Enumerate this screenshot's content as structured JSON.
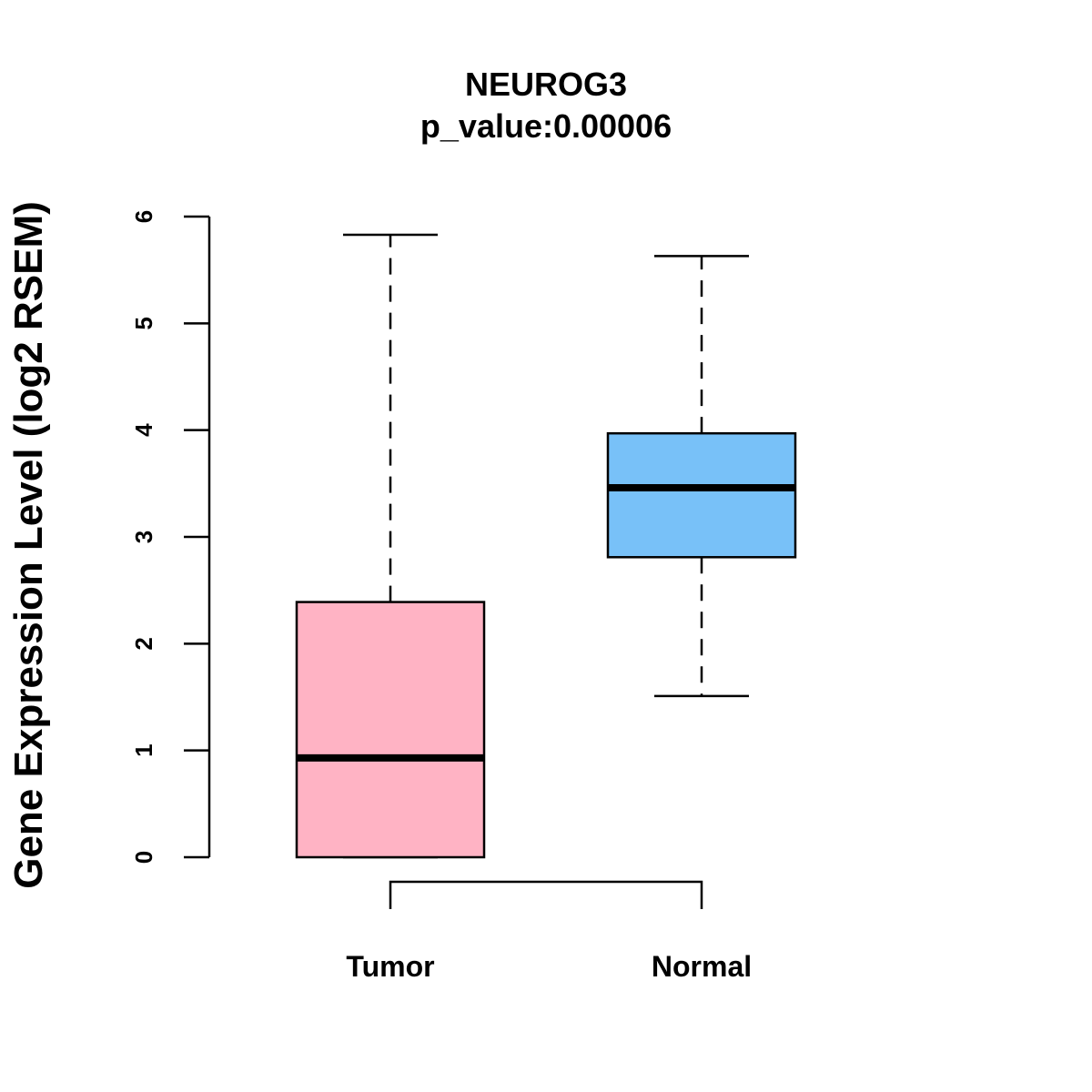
{
  "chart_data": {
    "type": "boxplot",
    "title": "NEUROG3",
    "subtitle": "p_value:0.00006",
    "ylabel": "Gene Expression Level (log2 RSEM)",
    "xlabel": "",
    "ylim": [
      0,
      6
    ],
    "yticks": [
      "0",
      "1",
      "2",
      "3",
      "4",
      "5",
      "6"
    ],
    "grid": false,
    "categories": [
      "Tumor",
      "Normal"
    ],
    "boxes": [
      {
        "category": "Tumor",
        "whisker_low": 0,
        "q1": 0,
        "median": 0.93,
        "q3": 2.39,
        "whisker_high": 5.83,
        "color": "#FFB3C4"
      },
      {
        "category": "Normal",
        "whisker_low": 1.51,
        "q1": 2.81,
        "median": 3.46,
        "q3": 3.97,
        "whisker_high": 5.63,
        "color": "#78C1F8"
      }
    ],
    "comparison_bracket": [
      "Tumor",
      "Normal"
    ]
  }
}
